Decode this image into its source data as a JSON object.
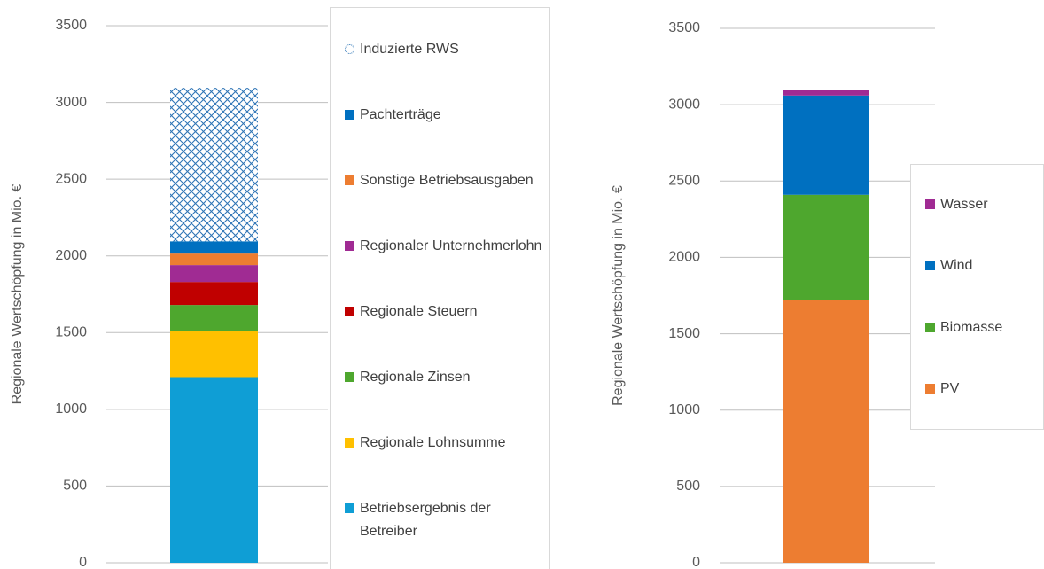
{
  "chart_data": [
    {
      "type": "stacked_bar",
      "ylabel": "Regionale Wertschöpfung in Mio. €",
      "categories": [
        null
      ],
      "ylim": [
        0,
        3500
      ],
      "yticks": [
        0,
        500,
        1000,
        1500,
        2000,
        2500,
        3000,
        3500
      ],
      "grid": true,
      "legend": "right",
      "series": [
        {
          "name": "Betriebsergebnis der Betreiber",
          "color": "#0f9ed5",
          "values": [
            1210
          ]
        },
        {
          "name": "Regionale Lohnsumme",
          "color": "#ffc000",
          "values": [
            300
          ]
        },
        {
          "name": "Regionale Zinsen",
          "color": "#4ea72e",
          "values": [
            170
          ]
        },
        {
          "name": "Regionale Steuern",
          "color": "#c00000",
          "values": [
            150
          ]
        },
        {
          "name": "Regionaler Unternehmerlohn",
          "color": "#a02b93",
          "values": [
            110
          ]
        },
        {
          "name": "Sonstige Betriebsausgaben",
          "color": "#ed7d31",
          "values": [
            75
          ]
        },
        {
          "name": "Pachterträge",
          "color": "#0070c0",
          "values": [
            80
          ]
        },
        {
          "name": "Induzierte RWS",
          "color": "#2e75b6",
          "hatch": true,
          "values": [
            1000
          ]
        }
      ]
    },
    {
      "type": "stacked_bar",
      "ylabel": "Regionale Wertschöpfung in Mio. €",
      "categories": [
        null
      ],
      "ylim": [
        0,
        3500
      ],
      "yticks": [
        0,
        500,
        1000,
        1500,
        2000,
        2500,
        3000,
        3500
      ],
      "grid": true,
      "legend": "right",
      "series": [
        {
          "name": "PV",
          "color": "#ed7d31",
          "values": [
            1720
          ]
        },
        {
          "name": "Biomasse",
          "color": "#4ea72e",
          "values": [
            690
          ]
        },
        {
          "name": "Wind",
          "color": "#0070c0",
          "values": [
            650
          ]
        },
        {
          "name": "Wasser",
          "color": "#a02b93",
          "values": [
            35
          ]
        }
      ]
    }
  ]
}
